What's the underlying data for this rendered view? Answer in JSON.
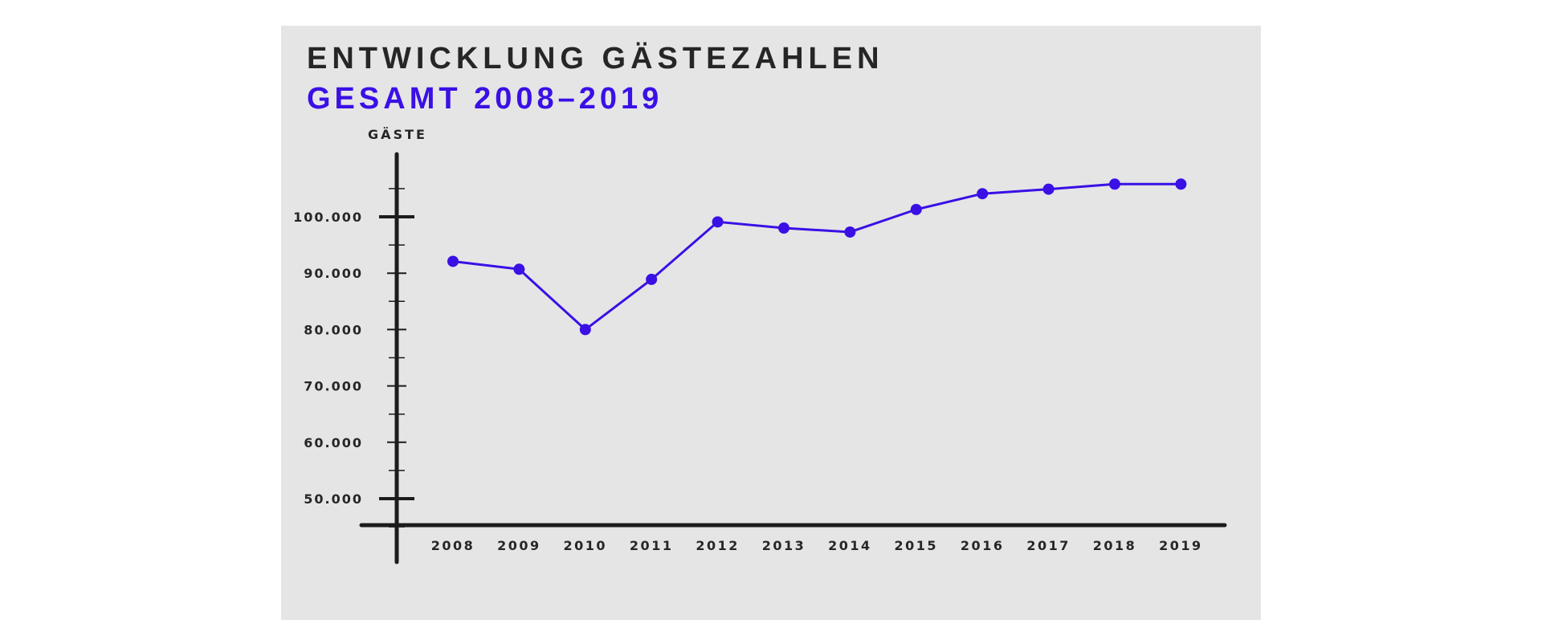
{
  "colors": {
    "panel_background": "#e5e5e6",
    "text": "#262626",
    "accent": "#3a10e5",
    "axis": "#1c1c1c"
  },
  "chart_data": {
    "type": "line",
    "title": "ENTWICKLUNG GÄSTEZAHLEN",
    "subtitle": "GESAMT 2008–2019",
    "ylabel": "GÄSTE",
    "xlabel": "",
    "x": [
      "2008",
      "2009",
      "2010",
      "2011",
      "2012",
      "2013",
      "2014",
      "2015",
      "2016",
      "2017",
      "2018",
      "2019"
    ],
    "series": [
      {
        "values": [
          92100,
          90700,
          80000,
          88900,
          99100,
          98000,
          97300,
          101300,
          104100,
          104900,
          105800,
          105800
        ]
      }
    ],
    "y_ticks": [
      50000,
      60000,
      70000,
      80000,
      90000,
      100000
    ],
    "y_tick_labels": [
      "50.000",
      "60.000",
      "70.000",
      "80.000",
      "90.000",
      "100.000"
    ],
    "ylim": [
      45000,
      110000
    ],
    "grid": false,
    "legend": "none"
  }
}
